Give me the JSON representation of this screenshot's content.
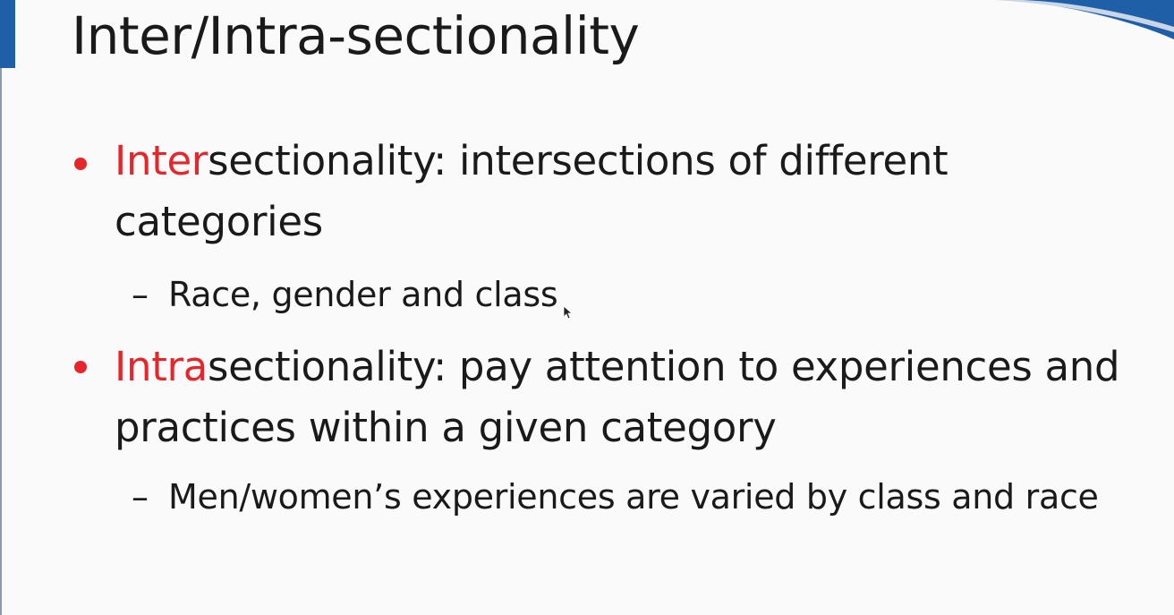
{
  "slide": {
    "title": "Inter/Intra-sectionality",
    "bullets": [
      {
        "accent": "Inter",
        "rest": "sectionality: intersections of different categories",
        "subpoints": [
          "Race, gender and class"
        ]
      },
      {
        "accent": "Intra",
        "rest": "sectionality: pay attention to experiences and practices within a given category",
        "subpoints": [
          "Men/women’s experiences are varied by class and race"
        ]
      }
    ],
    "dash": "–"
  },
  "colors": {
    "accent": "#e5262b",
    "brand_blue": "#1f5fa8",
    "text": "#1a1a1a",
    "background": "#fafafa"
  },
  "icons": {
    "cursor": "mouse-pointer-icon"
  }
}
